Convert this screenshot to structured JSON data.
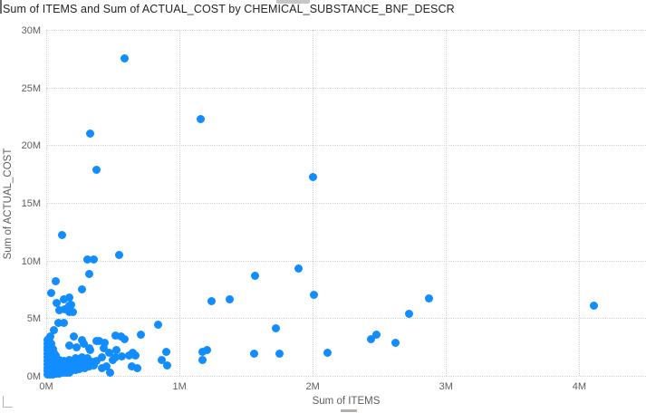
{
  "chart_data": {
    "type": "scatter",
    "title": "Sum of ITEMS and Sum of ACTUAL_COST by CHEMICAL_SUBSTANCE_BNF_DESCR",
    "xlabel": "Sum of ITEMS",
    "ylabel": "Sum of ACTUAL_COST",
    "x_tick_labels": [
      "0M",
      "1M",
      "2M",
      "3M",
      "4M"
    ],
    "x_tick_values": [
      0,
      1,
      2,
      3,
      4
    ],
    "y_tick_labels": [
      "0M",
      "5M",
      "10M",
      "15M",
      "20M",
      "25M",
      "30M"
    ],
    "y_tick_values": [
      0,
      5,
      10,
      15,
      20,
      25,
      30
    ],
    "xlim": [
      0,
      4.5
    ],
    "ylim": [
      0,
      30
    ],
    "units": "millions",
    "grid": "dotted",
    "legend": "none",
    "point_color": "#118DFF",
    "points": [
      [
        0.59,
        27.5
      ],
      [
        1.16,
        22.3
      ],
      [
        0.33,
        21.0
      ],
      [
        0.38,
        17.9
      ],
      [
        2.0,
        17.2
      ],
      [
        0.12,
        12.2
      ],
      [
        0.55,
        10.5
      ],
      [
        0.31,
        10.1
      ],
      [
        0.36,
        10.1
      ],
      [
        1.89,
        9.3
      ],
      [
        0.32,
        8.8
      ],
      [
        1.57,
        8.7
      ],
      [
        0.07,
        8.2
      ],
      [
        0.27,
        7.5
      ],
      [
        0.04,
        7.2
      ],
      [
        2.01,
        7.0
      ],
      [
        2.87,
        6.7
      ],
      [
        1.38,
        6.6
      ],
      [
        1.24,
        6.5
      ],
      [
        0.17,
        6.8
      ],
      [
        0.13,
        6.6
      ],
      [
        0.08,
        6.3
      ],
      [
        0.19,
        6.2
      ],
      [
        0.17,
        6.1
      ],
      [
        4.11,
        6.1
      ],
      [
        0.14,
        5.8
      ],
      [
        0.1,
        5.7
      ],
      [
        0.17,
        5.5
      ],
      [
        0.2,
        5.5
      ],
      [
        2.72,
        5.4
      ],
      [
        0.13,
        4.6
      ],
      [
        0.84,
        4.4
      ],
      [
        1.72,
        4.1
      ],
      [
        0.06,
        4.0
      ],
      [
        0.09,
        4.6
      ],
      [
        0.71,
        3.6
      ],
      [
        2.48,
        3.6
      ],
      [
        0.52,
        3.5
      ],
      [
        0.56,
        3.4
      ],
      [
        0.21,
        3.4
      ],
      [
        0.59,
        3.2
      ],
      [
        2.44,
        3.2
      ],
      [
        0.27,
        3.1
      ],
      [
        0.38,
        3.0
      ],
      [
        0.4,
        3.0
      ],
      [
        2.62,
        2.9
      ],
      [
        0.44,
        2.9
      ],
      [
        0.28,
        2.8
      ],
      [
        0.17,
        2.6
      ],
      [
        0.23,
        2.5
      ],
      [
        0.32,
        2.4
      ],
      [
        0.43,
        2.4
      ],
      [
        0.53,
        2.2
      ],
      [
        0.33,
        2.2
      ],
      [
        1.21,
        2.2
      ],
      [
        1.17,
        2.1
      ],
      [
        0.9,
        2.1
      ],
      [
        2.11,
        2.0
      ],
      [
        0.47,
        2.0
      ],
      [
        0.65,
        2.0
      ],
      [
        1.56,
        1.9
      ],
      [
        1.75,
        1.9
      ],
      [
        0.62,
        1.8
      ],
      [
        0.67,
        1.8
      ],
      [
        0.57,
        1.7
      ],
      [
        0.52,
        1.6
      ],
      [
        0.42,
        1.6
      ],
      [
        0.5,
        1.4
      ],
      [
        1.17,
        1.4
      ],
      [
        0.87,
        1.4
      ],
      [
        0.91,
        0.9
      ],
      [
        0.45,
        0.8
      ],
      [
        0.64,
        0.8
      ],
      [
        0.68,
        0.7
      ],
      [
        0.42,
        0.7
      ],
      [
        0.48,
        0.3
      ],
      [
        0.01,
        0.1
      ],
      [
        0.01,
        0.4
      ],
      [
        0.01,
        0.7
      ],
      [
        0.01,
        1.0
      ],
      [
        0.01,
        1.3
      ],
      [
        0.01,
        1.6
      ],
      [
        0.01,
        1.9
      ],
      [
        0.01,
        2.2
      ],
      [
        0.01,
        2.5
      ],
      [
        0.01,
        2.8
      ],
      [
        0.01,
        3.1
      ],
      [
        0.02,
        0.2
      ],
      [
        0.02,
        0.5
      ],
      [
        0.02,
        0.8
      ],
      [
        0.02,
        1.1
      ],
      [
        0.02,
        1.4
      ],
      [
        0.02,
        1.7
      ],
      [
        0.02,
        2.0
      ],
      [
        0.02,
        2.3
      ],
      [
        0.02,
        2.6
      ],
      [
        0.02,
        2.9
      ],
      [
        0.02,
        3.2
      ],
      [
        0.03,
        0.1
      ],
      [
        0.03,
        0.4
      ],
      [
        0.03,
        0.7
      ],
      [
        0.03,
        1.0
      ],
      [
        0.03,
        1.3
      ],
      [
        0.03,
        1.6
      ],
      [
        0.03,
        1.9
      ],
      [
        0.03,
        2.2
      ],
      [
        0.03,
        2.5
      ],
      [
        0.03,
        2.9
      ],
      [
        0.03,
        3.4
      ],
      [
        0.04,
        0.2
      ],
      [
        0.04,
        0.5
      ],
      [
        0.04,
        0.8
      ],
      [
        0.04,
        1.1
      ],
      [
        0.04,
        1.5
      ],
      [
        0.04,
        1.8
      ],
      [
        0.04,
        2.1
      ],
      [
        0.04,
        2.4
      ],
      [
        0.04,
        2.8
      ],
      [
        0.05,
        0.1
      ],
      [
        0.05,
        0.4
      ],
      [
        0.05,
        0.7
      ],
      [
        0.05,
        1.0
      ],
      [
        0.05,
        1.3
      ],
      [
        0.05,
        1.7
      ],
      [
        0.05,
        2.0
      ],
      [
        0.05,
        2.3
      ],
      [
        0.06,
        0.2
      ],
      [
        0.06,
        0.5
      ],
      [
        0.06,
        0.9
      ],
      [
        0.06,
        1.2
      ],
      [
        0.06,
        1.6
      ],
      [
        0.06,
        2.0
      ],
      [
        0.07,
        0.3
      ],
      [
        0.07,
        0.6
      ],
      [
        0.07,
        1.0
      ],
      [
        0.07,
        1.4
      ],
      [
        0.07,
        1.8
      ],
      [
        0.08,
        0.2
      ],
      [
        0.08,
        0.5
      ],
      [
        0.08,
        0.9
      ],
      [
        0.08,
        1.3
      ],
      [
        0.09,
        0.3
      ],
      [
        0.09,
        0.7
      ],
      [
        0.09,
        1.1
      ],
      [
        0.1,
        0.2
      ],
      [
        0.1,
        0.5
      ],
      [
        0.1,
        0.9
      ],
      [
        0.1,
        1.4
      ],
      [
        0.11,
        0.3
      ],
      [
        0.11,
        0.7
      ],
      [
        0.11,
        1.1
      ],
      [
        0.12,
        0.4
      ],
      [
        0.12,
        0.8
      ],
      [
        0.13,
        0.3
      ],
      [
        0.13,
        0.9
      ],
      [
        0.13,
        1.3
      ],
      [
        0.14,
        0.5
      ],
      [
        0.14,
        1.0
      ],
      [
        0.15,
        0.3
      ],
      [
        0.15,
        0.7
      ],
      [
        0.15,
        1.2
      ],
      [
        0.16,
        0.5
      ],
      [
        0.16,
        0.9
      ],
      [
        0.17,
        0.3
      ],
      [
        0.17,
        1.4
      ],
      [
        0.18,
        0.6
      ],
      [
        0.18,
        1.0
      ],
      [
        0.19,
        0.4
      ],
      [
        0.19,
        0.8
      ],
      [
        0.2,
        0.6
      ],
      [
        0.2,
        1.2
      ],
      [
        0.21,
        0.9
      ],
      [
        0.22,
        0.5
      ],
      [
        0.22,
        1.5
      ],
      [
        0.23,
        0.8
      ],
      [
        0.24,
        1.1
      ],
      [
        0.25,
        0.6
      ],
      [
        0.25,
        1.3
      ],
      [
        0.26,
        0.9
      ],
      [
        0.27,
        1.6
      ],
      [
        0.28,
        1.2
      ],
      [
        0.29,
        0.7
      ],
      [
        0.3,
        1.0
      ],
      [
        0.31,
        1.5
      ],
      [
        0.32,
        0.8
      ],
      [
        0.34,
        1.2
      ],
      [
        0.36,
        0.9
      ],
      [
        0.38,
        1.3
      ]
    ]
  },
  "colors": {
    "title_text": "#252423",
    "axis_text": "#605E5C",
    "gridline": "#D4D4D4",
    "point": "#118DFF"
  }
}
